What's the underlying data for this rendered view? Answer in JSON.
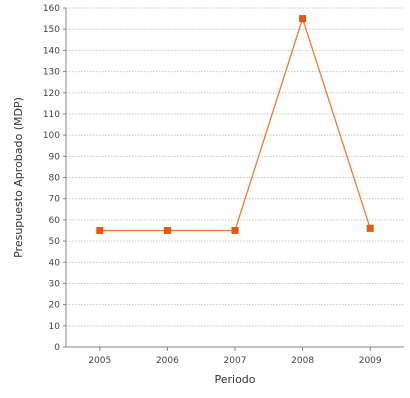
{
  "chart_data": {
    "type": "line",
    "title": "",
    "xlabel": "Periodo",
    "ylabel": "Presupuesto Aprobado (MDP)",
    "categories": [
      "2005",
      "2006",
      "2007",
      "2008",
      "2009"
    ],
    "ylim": [
      0,
      160
    ],
    "ytick_step": 10,
    "grid": true,
    "legend": "none",
    "series": [
      {
        "values": [
          55,
          55,
          55,
          155,
          56
        ]
      }
    ],
    "colors": {
      "line": "#f07a30",
      "marker": "#e05a10",
      "grid": "#c8c8c8",
      "axis": "#888888",
      "plot_background": "#ffffff"
    }
  }
}
